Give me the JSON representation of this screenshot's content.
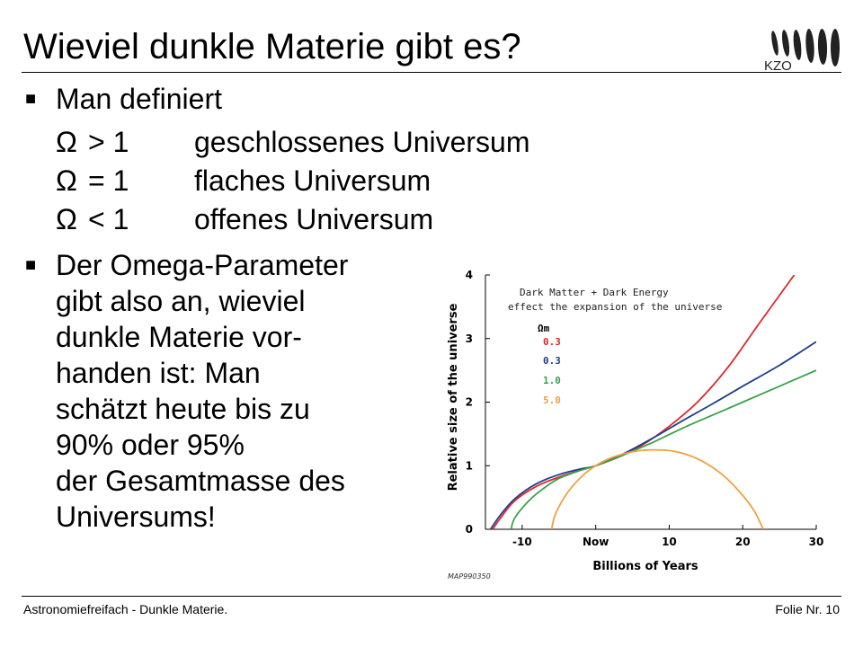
{
  "slide": {
    "title": "Wieviel dunkle Materie gibt es?",
    "logo_text": "KZO"
  },
  "bullets": {
    "b1": {
      "heading": "Man definiert",
      "definitions": [
        {
          "omega": "Ω",
          "relation": "> 1",
          "description": "geschlossenes Universum"
        },
        {
          "omega": "Ω",
          "relation": "= 1",
          "description": "flaches Universum"
        },
        {
          "omega": "Ω",
          "relation": "< 1",
          "description": "offenes Universum"
        }
      ]
    },
    "b2": {
      "lines": [
        "Der Omega-Parameter",
        "gibt also an, wieviel",
        "dunkle Materie vor-",
        "handen ist: Man",
        "schätzt heute bis zu",
        "90% oder 95%",
        "der Gesamtmasse des",
        "Universums!"
      ]
    }
  },
  "chart_data": {
    "type": "line",
    "annotation_lines": [
      "Dark Matter + Dark Energy",
      "effect the expansion of the universe"
    ],
    "legend_title": "Ωm",
    "xlabel": "Billions of Years",
    "ylabel": "Relative size of the universe",
    "credit": "MAP990350",
    "xlim": [
      -15,
      30
    ],
    "ylim": [
      0,
      4
    ],
    "x_ticks": [
      {
        "value": -10,
        "label": "-10"
      },
      {
        "value": 0,
        "label": "Now"
      },
      {
        "value": 10,
        "label": "10"
      },
      {
        "value": 20,
        "label": "20"
      },
      {
        "value": 30,
        "label": "30"
      }
    ],
    "y_ticks": [
      0,
      1,
      2,
      3,
      4
    ],
    "grid": false,
    "series": [
      {
        "name": "0.3",
        "color": "#e0262b",
        "points": [
          [
            -14,
            0
          ],
          [
            -13,
            0.17
          ],
          [
            -11,
            0.45
          ],
          [
            -8,
            0.68
          ],
          [
            -5,
            0.82
          ],
          [
            -2,
            0.93
          ],
          [
            0,
            1.0
          ],
          [
            3,
            1.13
          ],
          [
            6,
            1.3
          ],
          [
            10,
            1.62
          ],
          [
            14,
            2.02
          ],
          [
            18,
            2.55
          ],
          [
            22,
            3.2
          ],
          [
            25,
            3.68
          ],
          [
            27,
            4.0
          ]
        ]
      },
      {
        "name": "0.3",
        "color": "#1f3f8c",
        "points": [
          [
            -14.3,
            0
          ],
          [
            -13,
            0.22
          ],
          [
            -11,
            0.48
          ],
          [
            -8,
            0.72
          ],
          [
            -5,
            0.86
          ],
          [
            -2,
            0.95
          ],
          [
            0,
            1.0
          ],
          [
            4,
            1.2
          ],
          [
            8,
            1.45
          ],
          [
            12,
            1.72
          ],
          [
            16,
            1.98
          ],
          [
            20,
            2.25
          ],
          [
            25,
            2.58
          ],
          [
            30,
            2.95
          ]
        ]
      },
      {
        "name": "1.0",
        "color": "#3aa14a",
        "points": [
          [
            -11.5,
            0
          ],
          [
            -11,
            0.18
          ],
          [
            -9,
            0.46
          ],
          [
            -7,
            0.65
          ],
          [
            -5,
            0.8
          ],
          [
            -2,
            0.93
          ],
          [
            0,
            1.0
          ],
          [
            4,
            1.18
          ],
          [
            8,
            1.38
          ],
          [
            12,
            1.6
          ],
          [
            16,
            1.8
          ],
          [
            20,
            2.0
          ],
          [
            25,
            2.25
          ],
          [
            30,
            2.5
          ]
        ]
      },
      {
        "name": "5.0",
        "color": "#f0a040",
        "points": [
          [
            -6,
            0
          ],
          [
            -5.5,
            0.23
          ],
          [
            -4,
            0.55
          ],
          [
            -2,
            0.82
          ],
          [
            0,
            1.0
          ],
          [
            2,
            1.12
          ],
          [
            5,
            1.22
          ],
          [
            8,
            1.25
          ],
          [
            11,
            1.22
          ],
          [
            14,
            1.1
          ],
          [
            17,
            0.88
          ],
          [
            19.5,
            0.6
          ],
          [
            21.5,
            0.3
          ],
          [
            22.8,
            0
          ]
        ]
      }
    ]
  }
}
